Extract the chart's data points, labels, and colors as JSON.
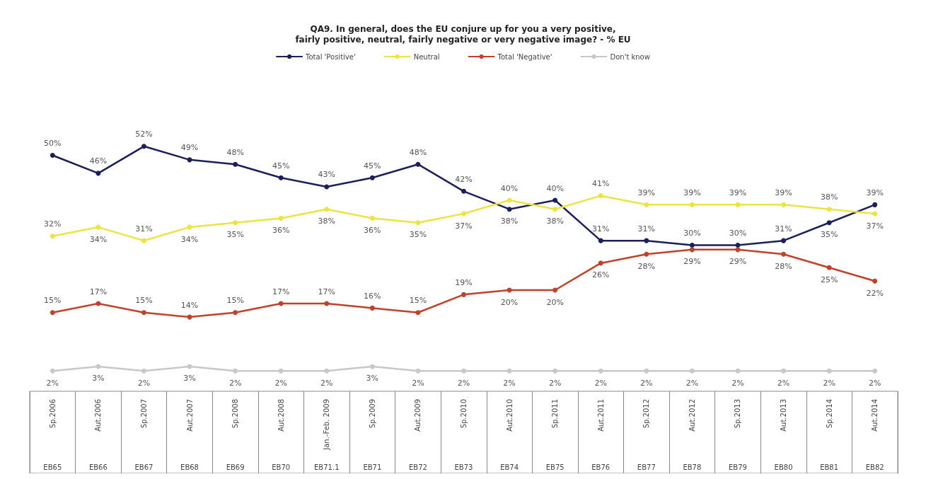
{
  "chart_data": {
    "type": "line",
    "title": "QA9. In general, does the EU conjure up for you a very positive,\nfairly positive, neutral, fairly negative or very negative image? - % EU",
    "categories": [
      "Sp.2006\nEB65",
      "Aut.2006\nEB66",
      "Sp.2007\nEB67",
      "Aut.2007\nEB68",
      "Sp.2008\nEB69",
      "Aut.2008\nEB70",
      "Jan.-Feb. 2009\nEB71.1",
      "Sp.2009\nEB71",
      "Aut.2009\nEB72",
      "Sp.2010\nEB73",
      "Aut.2010\nEB74",
      "Sp.2011\nEB75",
      "Aut.2011\nEB76",
      "Sp.2012\nEB77",
      "Aut.2012\nEB78",
      "Sp.2013\nEB79",
      "Aut.2013\nEB80",
      "Sp.2014\nEB81",
      "Aut.2014\nEB82"
    ],
    "series": [
      {
        "name": "Total 'Positive'",
        "color": "#1b1f5c",
        "values": [
          50,
          46,
          52,
          49,
          48,
          45,
          43,
          45,
          48,
          42,
          38,
          40,
          31,
          31,
          30,
          30,
          31,
          35,
          39
        ],
        "value_labels": [
          "50%",
          "46%",
          "52%",
          "49%",
          "48%",
          "45%",
          "43%",
          "45%",
          "48%",
          "42%",
          "38%",
          "40%",
          "31%",
          "31%",
          "30%",
          "30%",
          "31%",
          "35%",
          "39%"
        ]
      },
      {
        "name": "Neutral",
        "color": "#ece442",
        "values": [
          32,
          34,
          31,
          34,
          35,
          36,
          38,
          36,
          35,
          37,
          40,
          38,
          41,
          39,
          39,
          39,
          39,
          38,
          37
        ],
        "value_labels": [
          "32%",
          "34%",
          "31%",
          "34%",
          "35%",
          "36%",
          "38%",
          "36%",
          "35%",
          "37%",
          "40%",
          "38%",
          "41%",
          "39%",
          "39%",
          "39%",
          "39%",
          "38%",
          "37%"
        ]
      },
      {
        "name": "Total 'Negative'",
        "color": "#c0422a",
        "values": [
          15,
          17,
          15,
          14,
          15,
          17,
          17,
          16,
          15,
          19,
          20,
          20,
          26,
          28,
          29,
          29,
          28,
          25,
          22
        ],
        "value_labels": [
          "15%",
          "17%",
          "15%",
          "14%",
          "15%",
          "17%",
          "17%",
          "16%",
          "15%",
          "19%",
          "20%",
          "20%",
          "26%",
          "28%",
          "29%",
          "29%",
          "28%",
          "25%",
          "22%"
        ]
      },
      {
        "name": "Don't know",
        "color": "#c8c8c8",
        "values": [
          2,
          3,
          2,
          3,
          2,
          2,
          2,
          3,
          2,
          2,
          2,
          2,
          2,
          2,
          2,
          2,
          2,
          2,
          2
        ],
        "value_labels": [
          "2%",
          "3%",
          "2%",
          "3%",
          "2%",
          "2%",
          "2%",
          "3%",
          "2%",
          "2%",
          "2%",
          "2%",
          "2%",
          "2%",
          "2%",
          "2%",
          "2%",
          "2%",
          "2%"
        ]
      }
    ],
    "grid": false,
    "legend": "top",
    "marker": "circle",
    "line_style": "solid"
  }
}
